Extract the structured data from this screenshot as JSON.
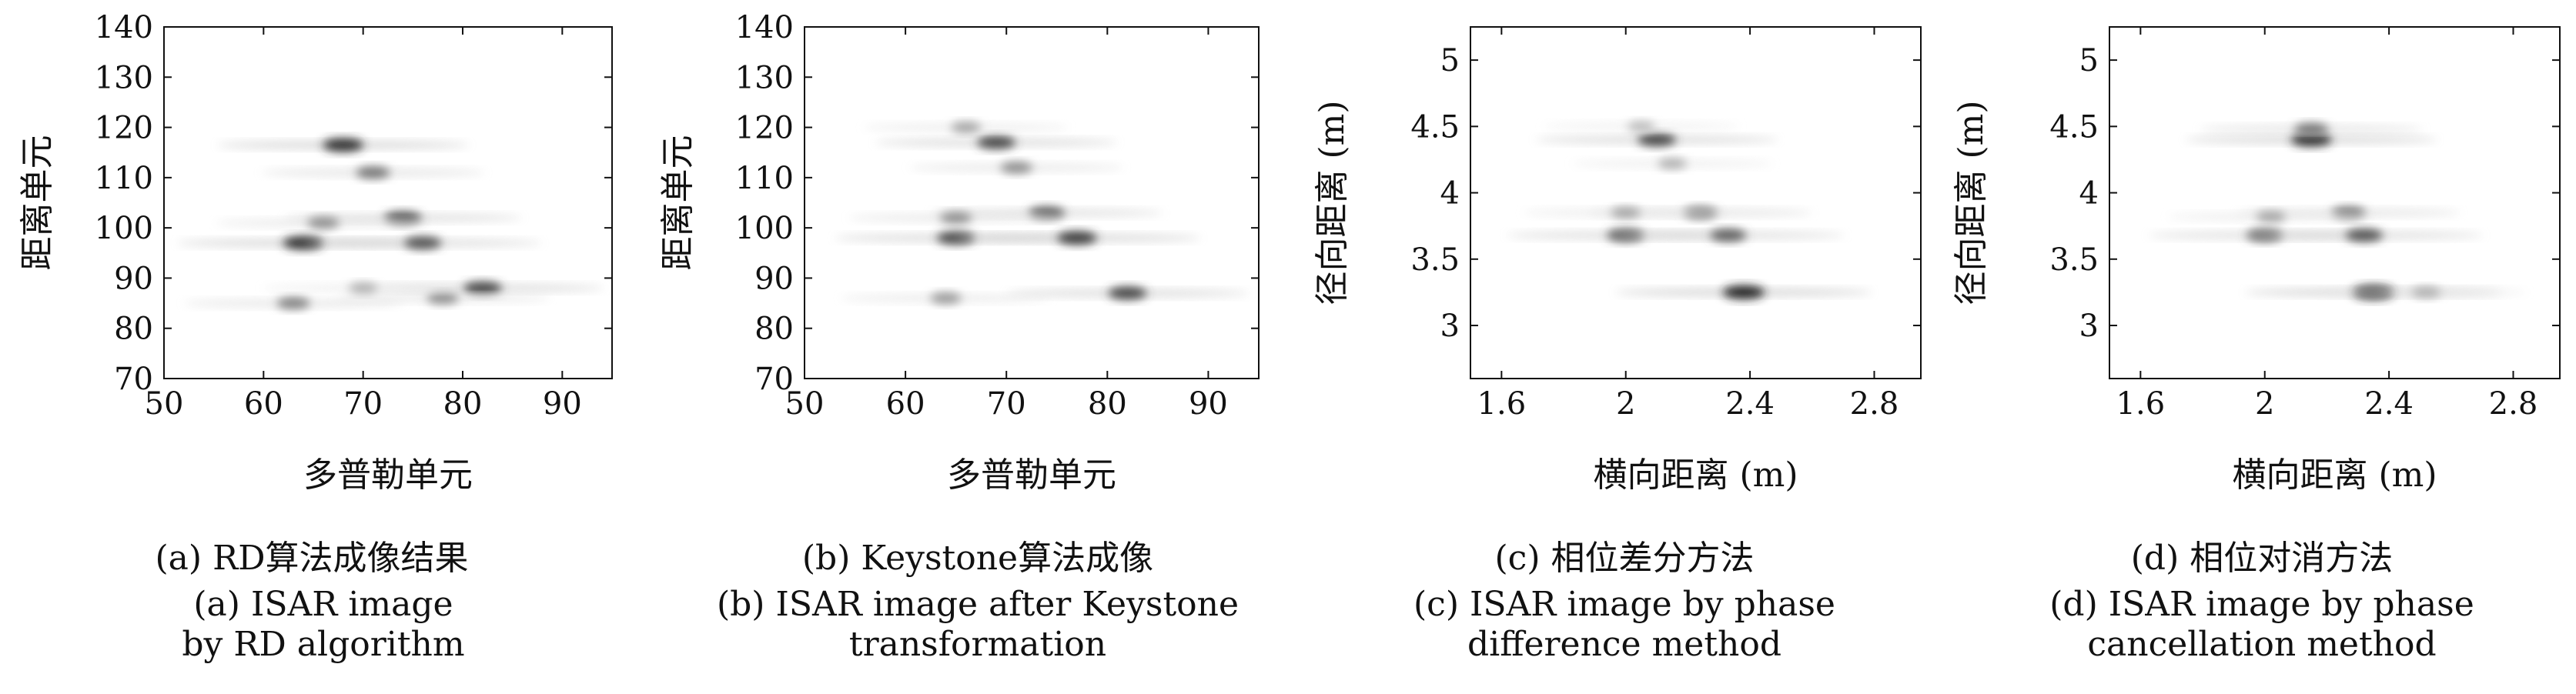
{
  "panels": [
    {
      "id": "a",
      "caption_zh": "(a) RD算法成像结果",
      "caption_en": "(a) ISAR image by RD algorithm",
      "chart_data": {
        "type": "heatmap",
        "xlabel": "多普勒单元",
        "ylabel": "距离单元",
        "xlim": [
          50,
          95
        ],
        "ylim": [
          70,
          140
        ],
        "xticks": [
          50,
          60,
          70,
          80,
          90
        ],
        "yticks": [
          70,
          80,
          90,
          100,
          110,
          120,
          130,
          140
        ],
        "colormap": "gray-inverted",
        "blobs": [
          {
            "x": 68,
            "y": 116.5,
            "intensity": 0.9
          },
          {
            "x": 64,
            "y": 97,
            "intensity": 0.9
          },
          {
            "x": 76,
            "y": 97,
            "intensity": 0.75
          },
          {
            "x": 74,
            "y": 102,
            "intensity": 0.75
          },
          {
            "x": 82,
            "y": 88,
            "intensity": 0.8
          },
          {
            "x": 63,
            "y": 85,
            "intensity": 0.55
          },
          {
            "x": 71,
            "y": 111,
            "intensity": 0.6
          },
          {
            "x": 66,
            "y": 101,
            "intensity": 0.5
          },
          {
            "x": 78,
            "y": 86,
            "intensity": 0.5
          },
          {
            "x": 70,
            "y": 88,
            "intensity": 0.35
          }
        ]
      }
    },
    {
      "id": "b",
      "caption_zh": "(b) Keystone算法成像",
      "caption_en": "(b) ISAR image after Keystone transformation",
      "chart_data": {
        "type": "heatmap",
        "xlabel": "多普勒单元",
        "ylabel": "距离单元",
        "xlim": [
          50,
          95
        ],
        "ylim": [
          70,
          140
        ],
        "xticks": [
          50,
          60,
          70,
          80,
          90
        ],
        "yticks": [
          70,
          80,
          90,
          100,
          110,
          120,
          130,
          140
        ],
        "colormap": "gray-inverted",
        "blobs": [
          {
            "x": 69,
            "y": 117,
            "intensity": 0.8
          },
          {
            "x": 65,
            "y": 98,
            "intensity": 0.8
          },
          {
            "x": 77,
            "y": 98,
            "intensity": 0.85
          },
          {
            "x": 74,
            "y": 103,
            "intensity": 0.7
          },
          {
            "x": 82,
            "y": 87,
            "intensity": 0.8
          },
          {
            "x": 71,
            "y": 112,
            "intensity": 0.5
          },
          {
            "x": 65,
            "y": 102,
            "intensity": 0.5
          },
          {
            "x": 64,
            "y": 86,
            "intensity": 0.45
          },
          {
            "x": 66,
            "y": 120,
            "intensity": 0.4
          }
        ]
      }
    },
    {
      "id": "c",
      "caption_zh": "(c) 相位差分方法",
      "caption_en": "(c) ISAR image by phase difference method",
      "chart_data": {
        "type": "heatmap",
        "xlabel": "横向距离 (m)",
        "ylabel": "径向距离 (m)",
        "xlim": [
          1.5,
          2.95
        ],
        "ylim": [
          2.6,
          5.25
        ],
        "xticks": [
          1.6,
          2.0,
          2.4,
          2.8
        ],
        "yticks": [
          3.0,
          3.5,
          4.0,
          4.5,
          5.0
        ],
        "colormap": "gray-inverted",
        "blobs": [
          {
            "x": 2.1,
            "y": 4.4,
            "intensity": 0.8
          },
          {
            "x": 2.38,
            "y": 3.25,
            "intensity": 0.95
          },
          {
            "x": 2.0,
            "y": 3.68,
            "intensity": 0.75
          },
          {
            "x": 2.33,
            "y": 3.68,
            "intensity": 0.7
          },
          {
            "x": 2.24,
            "y": 3.85,
            "intensity": 0.6
          },
          {
            "x": 2.0,
            "y": 3.85,
            "intensity": 0.4
          },
          {
            "x": 2.15,
            "y": 4.22,
            "intensity": 0.35
          },
          {
            "x": 2.05,
            "y": 4.5,
            "intensity": 0.3
          }
        ]
      }
    },
    {
      "id": "d",
      "caption_zh": "(d) 相位对消方法",
      "caption_en": "(d) ISAR image by phase cancellation method",
      "chart_data": {
        "type": "heatmap",
        "xlabel": "横向距离 (m)",
        "ylabel": "径向距离 (m)",
        "xlim": [
          1.5,
          2.95
        ],
        "ylim": [
          2.6,
          5.25
        ],
        "xticks": [
          1.6,
          2.0,
          2.4,
          2.8
        ],
        "yticks": [
          3.0,
          3.5,
          4.0,
          4.5,
          5.0
        ],
        "colormap": "gray-inverted",
        "blobs": [
          {
            "x": 2.15,
            "y": 4.4,
            "intensity": 0.9
          },
          {
            "x": 2.15,
            "y": 4.48,
            "intensity": 0.6
          },
          {
            "x": 2.35,
            "y": 3.25,
            "intensity": 0.95
          },
          {
            "x": 2.0,
            "y": 3.68,
            "intensity": 0.7
          },
          {
            "x": 2.32,
            "y": 3.68,
            "intensity": 0.75
          },
          {
            "x": 2.27,
            "y": 3.85,
            "intensity": 0.6
          },
          {
            "x": 2.02,
            "y": 3.82,
            "intensity": 0.4
          },
          {
            "x": 2.52,
            "y": 3.25,
            "intensity": 0.35
          }
        ]
      }
    }
  ]
}
